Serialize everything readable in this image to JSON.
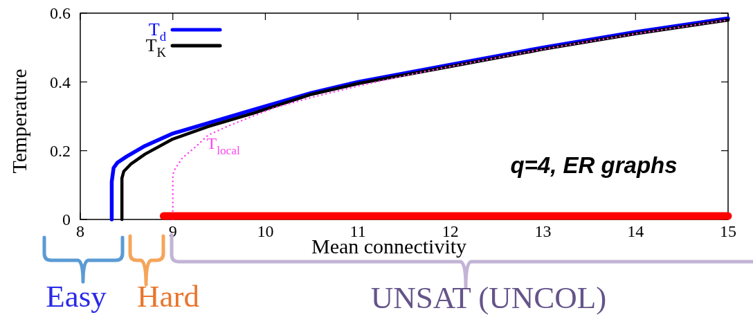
{
  "chart_data": {
    "type": "line",
    "xlabel": "Mean connectivity",
    "ylabel": "Temperature",
    "xlim": [
      8,
      15
    ],
    "xticks": [
      8,
      9,
      10,
      11,
      12,
      13,
      14,
      15
    ],
    "ylim": [
      0,
      0.6
    ],
    "yticks": [
      0,
      0.2,
      0.4,
      0.6
    ],
    "legend": "top left",
    "line_style": "solid",
    "annotations": [
      "q=4, ER graphs",
      "Easy",
      "Hard",
      "UNSAT (UNCOL)"
    ],
    "series": [
      {
        "name": "T$_{d}$",
        "color": "#0000ff",
        "x": [
          8.34,
          8.34,
          8.36,
          8.4,
          8.5,
          8.7,
          9,
          9.38,
          9.88,
          10.5,
          11,
          12,
          13,
          14,
          15
        ],
        "values": [
          0,
          0.11,
          0.15,
          0.165,
          0.183,
          0.214,
          0.25,
          0.28,
          0.32,
          0.368,
          0.4,
          0.45,
          0.5,
          0.545,
          0.585
        ]
      },
      {
        "name": "T$_{K}$",
        "color": "#000000",
        "x": [
          8.45,
          8.45,
          8.47,
          8.55,
          8.7,
          9,
          9.38,
          9.88,
          10.5,
          11,
          12,
          13,
          14,
          15
        ],
        "values": [
          0,
          0.12,
          0.14,
          0.162,
          0.19,
          0.234,
          0.27,
          0.31,
          0.364,
          0.395,
          0.445,
          0.495,
          0.54,
          0.58
        ]
      },
      {
        "name": "T$_{local}$",
        "color": "#ff44ee",
        "line_style": "dotted",
        "x": [
          9,
          9,
          9.02,
          9.1,
          9.24,
          9.38,
          9.6,
          9.88,
          10.1,
          10.5,
          11,
          11.5,
          12,
          13,
          14,
          15
        ],
        "values": [
          0,
          0.13,
          0.145,
          0.178,
          0.21,
          0.245,
          0.272,
          0.302,
          0.325,
          0.355,
          0.388,
          0.418,
          0.445,
          0.495,
          0.54,
          0.58
        ]
      },
      {
        "color": "#ff0000",
        "x": [
          8.9,
          15
        ],
        "values": [
          0.01,
          0.01
        ]
      }
    ]
  }
}
